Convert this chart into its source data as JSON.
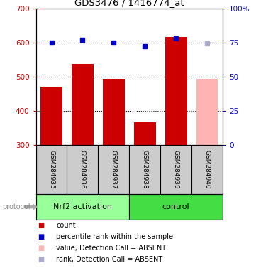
{
  "title": "GDS3476 / 1416774_at",
  "categories": [
    "GSM284935",
    "GSM284936",
    "GSM284937",
    "GSM284938",
    "GSM284939",
    "GSM284940"
  ],
  "bar_values": [
    470,
    537,
    492,
    366,
    615,
    492
  ],
  "bar_colors": [
    "#cc0000",
    "#cc0000",
    "#cc0000",
    "#cc0000",
    "#cc0000",
    "#ffb3b3"
  ],
  "rank_values": [
    75,
    77,
    75,
    72,
    78,
    74
  ],
  "rank_colors": [
    "#0000cc",
    "#0000cc",
    "#0000cc",
    "#0000cc",
    "#0000cc",
    "#aaaacc"
  ],
  "ylim_left": [
    300,
    700
  ],
  "ylim_right": [
    0,
    100
  ],
  "yticks_left": [
    300,
    400,
    500,
    600,
    700
  ],
  "ytick_labels_left": [
    "300",
    "400",
    "500",
    "600",
    "700"
  ],
  "yticks_right": [
    0,
    25,
    50,
    75,
    100
  ],
  "ytick_labels_right": [
    "0",
    "25",
    "50",
    "75",
    "100%"
  ],
  "groups": [
    {
      "label": "Nrf2 activation",
      "indices": [
        0,
        1,
        2
      ],
      "color": "#99ff99"
    },
    {
      "label": "control",
      "indices": [
        3,
        4,
        5
      ],
      "color": "#44dd44"
    }
  ],
  "protocol_label": "protocol",
  "legend_items": [
    {
      "label": "count",
      "color": "#cc0000"
    },
    {
      "label": "percentile rank within the sample",
      "color": "#0000cc"
    },
    {
      "label": "value, Detection Call = ABSENT",
      "color": "#ffb3b3"
    },
    {
      "label": "rank, Detection Call = ABSENT",
      "color": "#aaaacc"
    }
  ],
  "bar_bottom": 300,
  "bar_width": 0.7
}
